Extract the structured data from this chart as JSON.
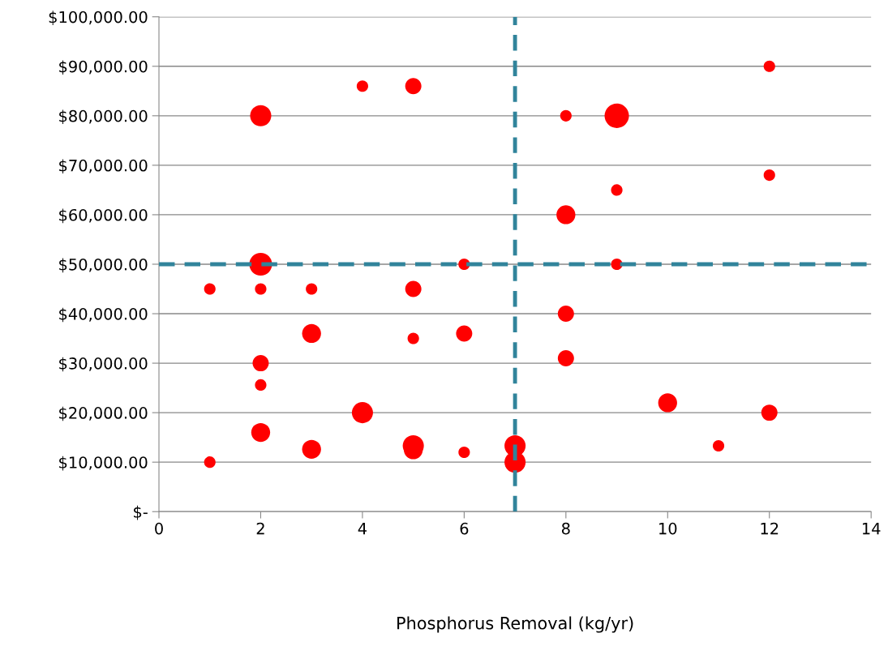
{
  "chart_data": {
    "type": "bubble",
    "xlabel": "Phosphorus Removal (kg/yr)",
    "xlim": [
      0,
      14
    ],
    "xticks": [
      0,
      2,
      4,
      6,
      8,
      10,
      12,
      14
    ],
    "ylim": [
      0,
      100000
    ],
    "yticks": [
      {
        "value": 0,
        "label": "$-"
      },
      {
        "value": 10000,
        "label": "$10,000.00"
      },
      {
        "value": 20000,
        "label": "$20,000.00"
      },
      {
        "value": 30000,
        "label": "$30,000.00"
      },
      {
        "value": 40000,
        "label": "$40,000.00"
      },
      {
        "value": 50000,
        "label": "$50,000.00"
      },
      {
        "value": 60000,
        "label": "$60,000.00"
      },
      {
        "value": 70000,
        "label": "$70,000.00"
      },
      {
        "value": 80000,
        "label": "$80,000.00"
      },
      {
        "value": 90000,
        "label": "$90,000.00"
      },
      {
        "value": 100000,
        "label": "$100,000.00"
      }
    ],
    "grid": "y",
    "legend": false,
    "series": [
      {
        "color": "#ff0000",
        "x": [
          1,
          1,
          2,
          2,
          2,
          2,
          2,
          2,
          3,
          3,
          3,
          4,
          4,
          5,
          5,
          5,
          5,
          5,
          6,
          6,
          6,
          7,
          7,
          8,
          8,
          8,
          8,
          9,
          9,
          9,
          10,
          11,
          12,
          12,
          12
        ],
        "values": [
          45000,
          10000,
          80000,
          50000,
          45000,
          30000,
          25600,
          16000,
          45000,
          36000,
          12600,
          86000,
          20000,
          86000,
          45000,
          35000,
          13300,
          12500,
          50000,
          36000,
          12000,
          13300,
          10000,
          80000,
          60000,
          40000,
          31000,
          80000,
          65000,
          50000,
          22000,
          13300,
          90000,
          68000,
          20000
        ],
        "sizes": [
          0.22,
          0.22,
          0.75,
          0.87,
          0.22,
          0.44,
          0.22,
          0.6,
          0.22,
          0.6,
          0.6,
          0.22,
          0.75,
          0.44,
          0.44,
          0.22,
          0.75,
          0.6,
          0.22,
          0.44,
          0.22,
          0.75,
          0.75,
          0.22,
          0.6,
          0.44,
          0.44,
          1,
          0.22,
          0.22,
          0.6,
          0.22,
          0.22,
          0.22,
          0.44
        ]
      }
    ],
    "ref_lines": [
      {
        "axis": "x",
        "value": 7,
        "color": "#31849b",
        "line_style": "dashed"
      },
      {
        "axis": "y",
        "value": 50000,
        "color": "#31849b",
        "line_style": "dashed"
      }
    ]
  }
}
